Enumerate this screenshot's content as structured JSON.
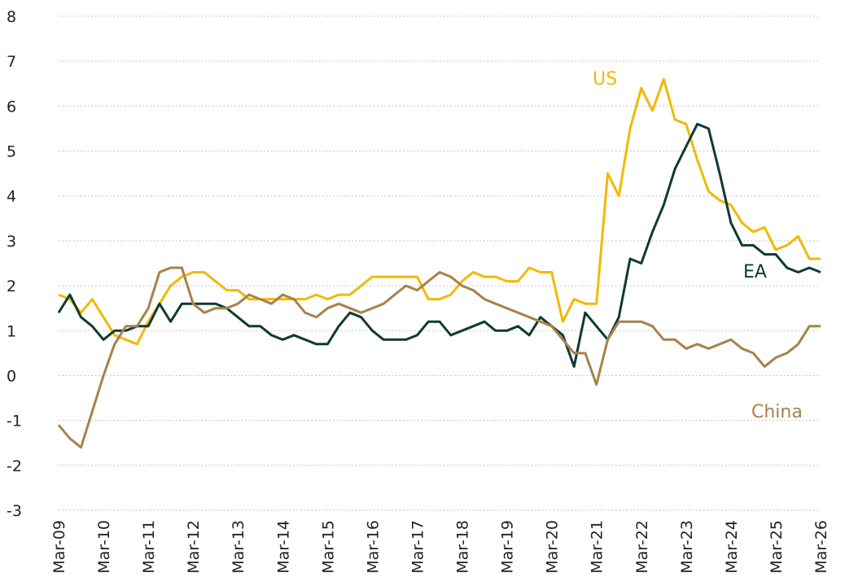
{
  "chart_data": {
    "type": "line",
    "categories": [
      "Mar-09",
      null,
      null,
      null,
      "Mar-10",
      null,
      null,
      null,
      "Mar-11",
      null,
      null,
      null,
      "Mar-12",
      null,
      null,
      null,
      "Mar-13",
      null,
      null,
      null,
      "Mar-14",
      null,
      null,
      null,
      "Mar-15",
      null,
      null,
      null,
      "Mar-16",
      null,
      null,
      null,
      "Mar-17",
      null,
      null,
      null,
      "Mar-18",
      null,
      null,
      null,
      "Mar-19",
      null,
      null,
      null,
      "Mar-20",
      null,
      null,
      null,
      "Mar-21",
      null,
      null,
      null,
      "Mar-22",
      null,
      null,
      null,
      "Mar-23",
      null,
      null,
      null,
      "Mar-24",
      null,
      null,
      null,
      "Mar-25",
      null,
      null,
      null,
      "Mar-26"
    ],
    "series": [
      {
        "name": "US",
        "color": "#f2b900",
        "values": [
          1.8,
          1.7,
          1.4,
          1.7,
          1.3,
          0.9,
          0.8,
          0.7,
          1.2,
          1.6,
          2.0,
          2.2,
          2.3,
          2.3,
          2.1,
          1.9,
          1.9,
          1.7,
          1.7,
          1.7,
          1.7,
          1.7,
          1.7,
          1.8,
          1.7,
          1.8,
          1.8,
          2.0,
          2.2,
          2.2,
          2.2,
          2.2,
          2.2,
          1.7,
          1.7,
          1.8,
          2.1,
          2.3,
          2.2,
          2.2,
          2.1,
          2.1,
          2.4,
          2.3,
          2.3,
          1.2,
          1.7,
          1.6,
          1.6,
          4.5,
          4.0,
          5.5,
          6.4,
          5.9,
          6.6,
          5.7,
          5.6,
          4.8,
          4.1,
          3.9,
          3.8,
          3.4,
          3.2,
          3.3,
          2.8,
          2.9,
          3.1,
          2.6,
          2.6
        ]
      },
      {
        "name": "EA",
        "color": "#0d3b34",
        "values": [
          1.4,
          1.8,
          1.3,
          1.1,
          0.8,
          1.0,
          1.0,
          1.1,
          1.1,
          1.6,
          1.2,
          1.6,
          1.6,
          1.6,
          1.6,
          1.5,
          1.3,
          1.1,
          1.1,
          0.9,
          0.8,
          0.9,
          0.8,
          0.7,
          0.7,
          1.1,
          1.4,
          1.3,
          1.0,
          0.8,
          0.8,
          0.8,
          0.9,
          1.2,
          1.2,
          0.9,
          1.0,
          1.1,
          1.2,
          1.0,
          1.0,
          1.1,
          0.9,
          1.3,
          1.1,
          0.9,
          0.2,
          1.4,
          1.1,
          0.8,
          1.3,
          2.6,
          2.5,
          3.2,
          3.8,
          4.6,
          5.1,
          5.6,
          5.5,
          4.5,
          3.4,
          2.9,
          2.9,
          2.7,
          2.7,
          2.4,
          2.3,
          2.4,
          2.3
        ]
      },
      {
        "name": "China",
        "color": "#a8824a",
        "values": [
          -1.1,
          -1.4,
          -1.6,
          -0.8,
          0.0,
          0.7,
          1.1,
          1.1,
          1.5,
          2.3,
          2.4,
          2.4,
          1.6,
          1.4,
          1.5,
          1.5,
          1.6,
          1.8,
          1.7,
          1.6,
          1.8,
          1.7,
          1.4,
          1.3,
          1.5,
          1.6,
          1.5,
          1.4,
          1.5,
          1.6,
          1.8,
          2.0,
          1.9,
          2.1,
          2.3,
          2.2,
          2.0,
          1.9,
          1.7,
          1.6,
          1.5,
          1.4,
          1.3,
          1.2,
          1.1,
          0.8,
          0.5,
          0.5,
          -0.2,
          0.8,
          1.2,
          1.2,
          1.2,
          1.1,
          0.8,
          0.8,
          0.6,
          0.7,
          0.6,
          0.7,
          0.8,
          0.6,
          0.5,
          0.2,
          0.4,
          0.5,
          0.7,
          1.1,
          1.1
        ]
      }
    ],
    "ylim": [
      -3,
      8
    ],
    "yticks": [
      -3,
      -2,
      -1,
      0,
      1,
      2,
      3,
      4,
      5,
      6,
      7,
      8
    ],
    "grid": true
  }
}
